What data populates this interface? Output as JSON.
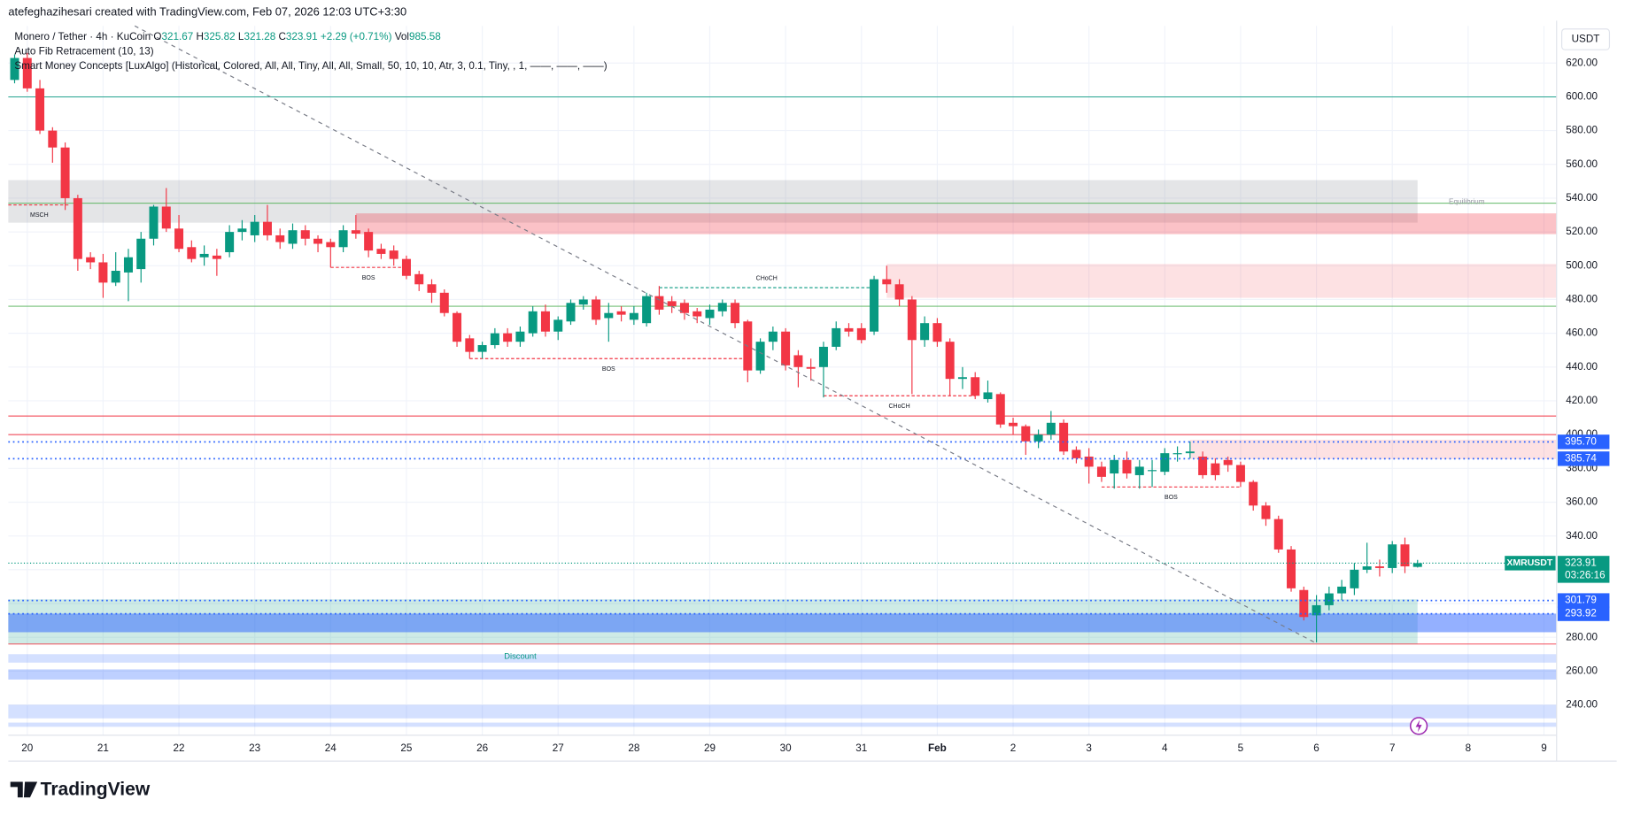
{
  "header": "atefeghazihesari created with TradingView.com, Feb 07, 2026 12:03 UTC+3:30",
  "chart_data": {
    "type": "candlestick",
    "legend": {
      "symbol": "Monero / Tether · 4h · KuCoin",
      "letters": [
        "O",
        "H",
        "L",
        "C"
      ],
      "change": "+2.29 (+0.71%)",
      "vol_label": "Vol",
      "vol": 985.58
    },
    "indicators": [
      "Auto Fib Retracement (10, 13)",
      "Smart Money Concepts [LuxAlgo] (Historical, Colored, All, All, Tiny, All, All, Small, 50, 10, 10, Atr, 3, 0.1, Tiny, , 1, ——, ——, ——)"
    ],
    "currency": "USDT",
    "symbol_tag": "XMRUSDT",
    "countdown": "03:26:16",
    "up_color": "#089981",
    "down_color": "#f23645",
    "open": [
      610,
      623,
      605,
      580,
      570,
      540,
      505,
      502,
      490,
      496,
      498,
      516,
      535,
      522,
      511,
      505,
      506,
      508,
      520,
      518,
      526,
      518,
      513,
      521,
      516,
      514,
      511,
      521,
      520,
      510,
      509,
      504,
      495,
      489,
      484,
      472,
      457,
      449,
      453,
      460,
      455,
      460,
      473,
      461,
      467,
      477,
      480,
      469,
      473,
      468,
      466,
      482,
      479,
      478,
      473,
      469,
      473,
      478,
      467,
      438,
      455,
      461,
      447,
      440,
      440,
      452,
      463,
      463,
      461,
      492,
      489,
      480,
      456,
      466,
      455,
      433,
      434,
      421,
      424,
      407,
      405,
      396,
      400,
      407,
      391,
      387,
      381,
      377,
      385,
      376,
      379,
      378,
      389,
      389,
      387,
      383,
      385,
      382,
      372,
      358,
      350,
      332,
      308,
      293,
      299,
      306,
      309,
      320,
      322,
      321,
      335,
      321.67
    ],
    "high": [
      625,
      626,
      610,
      582,
      573,
      542,
      508,
      507,
      508,
      510,
      520,
      536,
      546,
      530,
      515,
      512,
      510,
      524,
      527,
      530,
      536,
      522,
      525,
      524,
      518,
      516,
      524,
      530,
      522,
      513,
      512,
      506,
      497,
      492,
      486,
      473,
      459,
      455,
      463,
      463,
      464,
      476,
      477,
      470,
      480,
      482,
      482,
      478,
      476,
      476,
      484,
      488,
      482,
      480,
      475,
      477,
      480,
      480,
      468,
      457,
      464,
      463,
      450,
      445,
      455,
      467,
      466,
      466,
      494,
      500,
      492,
      482,
      470,
      469,
      457,
      440,
      437,
      432,
      425,
      410,
      406,
      403,
      414,
      409,
      393,
      392,
      384,
      388,
      390,
      385,
      385,
      392,
      393,
      396,
      390,
      386,
      387,
      384,
      373,
      360,
      352,
      334,
      310,
      305,
      310,
      314,
      324,
      336,
      326,
      337,
      339,
      325.82
    ],
    "low": [
      608,
      603,
      578,
      561,
      533,
      497,
      498,
      481,
      488,
      479,
      490,
      512,
      520,
      508,
      502,
      500,
      494,
      505,
      515,
      514,
      515,
      510,
      510,
      512,
      508,
      499,
      508,
      516,
      505,
      504,
      500,
      492,
      485,
      478,
      470,
      452,
      445,
      445,
      451,
      452,
      452,
      458,
      458,
      456,
      465,
      474,
      465,
      455,
      467,
      465,
      464,
      471,
      472,
      468,
      466,
      465,
      470,
      463,
      431,
      436,
      450,
      438,
      428,
      432,
      422,
      450,
      458,
      454,
      459,
      484,
      476,
      424,
      452,
      452,
      423,
      427,
      421,
      419,
      404,
      400,
      388,
      392,
      397,
      388,
      383,
      371,
      372,
      368,
      374,
      368,
      369,
      376,
      384,
      386,
      374,
      373,
      378,
      369,
      355,
      346,
      330,
      307,
      290,
      277,
      296,
      302,
      305,
      318,
      316,
      318,
      318,
      321.28
    ],
    "close": [
      623,
      605,
      580,
      570,
      540,
      504,
      502,
      490,
      497,
      505,
      516,
      535,
      522,
      510,
      504,
      507,
      504,
      520,
      522,
      526,
      518,
      514,
      521,
      516,
      513,
      511,
      521,
      519,
      509,
      507,
      504,
      494,
      489,
      484,
      472,
      455,
      449,
      453,
      460,
      455,
      461,
      473,
      461,
      468,
      478,
      480,
      468,
      472,
      471,
      472,
      482,
      474,
      476,
      472,
      470,
      474,
      478,
      466,
      438,
      455,
      461,
      441,
      440,
      439,
      452,
      463,
      461,
      456,
      492,
      489,
      480,
      456,
      466,
      455,
      433,
      434,
      423,
      425,
      406,
      405,
      396,
      400,
      407,
      390,
      386,
      381,
      375,
      385,
      377,
      381,
      379,
      389,
      389,
      390,
      376,
      376,
      382,
      372,
      358,
      350,
      332,
      309,
      292,
      299,
      306,
      310,
      320,
      322,
      321,
      335,
      322,
      323.91
    ],
    "xlim": [
      -0.5,
      122
    ],
    "xticks": [
      {
        "value": 1,
        "label": "20"
      },
      {
        "value": 7,
        "label": "21"
      },
      {
        "value": 13,
        "label": "22"
      },
      {
        "value": 19,
        "label": "23"
      },
      {
        "value": 25,
        "label": "24"
      },
      {
        "value": 31,
        "label": "25"
      },
      {
        "value": 37,
        "label": "26"
      },
      {
        "value": 43,
        "label": "27"
      },
      {
        "value": 49,
        "label": "28"
      },
      {
        "value": 55,
        "label": "29"
      },
      {
        "value": 61,
        "label": "30"
      },
      {
        "value": 67,
        "label": "31"
      },
      {
        "value": 73,
        "label": "Feb"
      },
      {
        "value": 79,
        "label": "2"
      },
      {
        "value": 85,
        "label": "3"
      },
      {
        "value": 91,
        "label": "4"
      },
      {
        "value": 97,
        "label": "5"
      },
      {
        "value": 103,
        "label": "6"
      },
      {
        "value": 109,
        "label": "7"
      },
      {
        "value": 115,
        "label": "8"
      },
      {
        "value": 121,
        "label": "9"
      }
    ],
    "ylim": [
      222,
      642
    ],
    "yticks": [
      {
        "value": 240,
        "label": "240.00"
      },
      {
        "value": 260,
        "label": "260.00"
      },
      {
        "value": 280,
        "label": "280.00"
      },
      {
        "value": 300,
        "label": "300.00"
      },
      {
        "value": 320,
        "label": "320.00"
      },
      {
        "value": 340,
        "label": "340.00"
      },
      {
        "value": 360,
        "label": "360.00"
      },
      {
        "value": 380,
        "label": "380.00"
      },
      {
        "value": 400,
        "label": "400.00"
      },
      {
        "value": 420,
        "label": "420.00"
      },
      {
        "value": 440,
        "label": "440.00"
      },
      {
        "value": 460,
        "label": "460.00"
      },
      {
        "value": 480,
        "label": "480.00"
      },
      {
        "value": 500,
        "label": "500.00"
      },
      {
        "value": 520,
        "label": "520.00"
      },
      {
        "value": 540,
        "label": "540.00"
      },
      {
        "value": 560,
        "label": "560.00"
      },
      {
        "value": 580,
        "label": "580.00"
      },
      {
        "value": 600,
        "label": "600.00"
      },
      {
        "value": 620,
        "label": "620.00"
      }
    ],
    "grid": true,
    "price_labels": [
      {
        "value": 395.7,
        "label": "395.70"
      },
      {
        "value": 385.74,
        "label": "385.74"
      },
      {
        "value": 301.79,
        "label": "301.79"
      },
      {
        "value": 293.92,
        "label": "293.92"
      }
    ],
    "price_label_color": "#2962ff",
    "levels": [
      {
        "value": 600,
        "color": "#089981"
      },
      {
        "value": 537,
        "color": "#4caf50"
      },
      {
        "value": 476,
        "color": "#4caf50"
      },
      {
        "value": 411,
        "color": "#f23645"
      },
      {
        "value": 400,
        "color": "#f23645"
      },
      {
        "value": 276,
        "color": "#f23645"
      }
    ],
    "zones": [
      {
        "from": 525.5,
        "to": 550.7,
        "x0": -0.5,
        "x1": 111,
        "color": "rgba(120,123,134,0.2)"
      },
      {
        "from": 518.7,
        "to": 531,
        "x0": 27,
        "x1": 122,
        "color": "rgba(242,54,69,0.3)"
      },
      {
        "from": 481,
        "to": 501,
        "x0": 69,
        "x1": 122,
        "color": "rgba(242,54,69,0.15)"
      },
      {
        "from": 385.5,
        "to": 397,
        "x0": 93,
        "x1": 122,
        "color": "rgba(242,54,69,0.15)"
      },
      {
        "from": 276,
        "to": 302.5,
        "x0": -0.5,
        "x1": 111,
        "color": "rgba(8,153,129,0.2)"
      },
      {
        "from": 283,
        "to": 294,
        "x0": -0.5,
        "x1": 122,
        "color": "rgba(41,98,255,0.5)"
      },
      {
        "from": 265,
        "to": 270,
        "x0": -0.5,
        "x1": 122,
        "color": "rgba(41,98,255,0.2)"
      },
      {
        "from": 255,
        "to": 261,
        "x0": -0.5,
        "x1": 122,
        "color": "rgba(41,98,255,0.3)"
      },
      {
        "from": 232,
        "to": 240,
        "x0": -0.5,
        "x1": 122,
        "color": "rgba(41,98,255,0.2)"
      },
      {
        "from": 227,
        "to": 229.5,
        "x0": -0.5,
        "x1": 122,
        "color": "rgba(41,98,255,0.2)"
      }
    ],
    "segments": [
      {
        "value": 536,
        "x0": -0.5,
        "x1": 4.4,
        "color": "#f23645",
        "label": "MSCH"
      },
      {
        "value": 499,
        "x0": 25,
        "x1": 31,
        "color": "#f23645",
        "label": "BOS"
      },
      {
        "value": 445,
        "x0": 36,
        "x1": 58,
        "color": "#f23645",
        "label": "BOS"
      },
      {
        "value": 487,
        "x0": 51,
        "x1": 68,
        "color": "#089981",
        "label": "CHoCH"
      },
      {
        "value": 423,
        "x0": 64,
        "x1": 76,
        "color": "#f23645",
        "label": "CHoCH"
      },
      {
        "value": 369,
        "x0": 86,
        "x1": 97,
        "color": "#f23645",
        "label": "BOS"
      }
    ],
    "annotations": [
      "Equilibrium",
      "Discount"
    ]
  },
  "footer": "TradingView"
}
